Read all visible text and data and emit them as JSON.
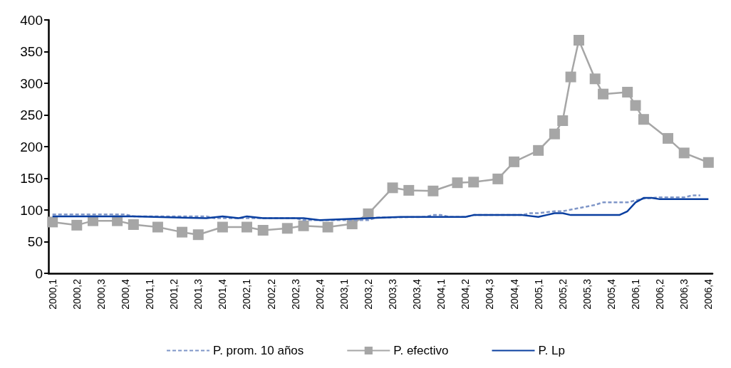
{
  "chart_data": {
    "type": "line",
    "categories": [
      "2000,1",
      null,
      null,
      "2000,2",
      null,
      null,
      "2000,3",
      null,
      null,
      "2000,4",
      null,
      null,
      "2001,1",
      null,
      null,
      "2001,2",
      null,
      null,
      "2001,3",
      null,
      null,
      "2001,4",
      null,
      null,
      "2002,1",
      null,
      null,
      "2002,2",
      null,
      null,
      "2002,3",
      null,
      null,
      "2002,4",
      null,
      null,
      "2003,1",
      null,
      null,
      "2003,2",
      null,
      null,
      "2003,3",
      null,
      null,
      "2003,4",
      null,
      null,
      "2004,1",
      null,
      null,
      "2004,2",
      null,
      null,
      "2004,3",
      null,
      null,
      "2004,4",
      null,
      null,
      "2005,1",
      null,
      null,
      "2005,2",
      null,
      null,
      "2005,3",
      null,
      null,
      "2005,4",
      null,
      null,
      "2006,1",
      null,
      null,
      "2006,2",
      null,
      null,
      "2006,3",
      null,
      null,
      "2006,4"
    ],
    "ylim": [
      0,
      400
    ],
    "yticks": [
      0,
      50,
      100,
      150,
      200,
      250,
      300,
      350,
      400
    ],
    "grid": false,
    "legend": "bottom",
    "series": [
      {
        "name": "P. prom. 10 años",
        "color": "#7f96c8",
        "line_style": "dashed",
        "marker": "none",
        "values": [
          93,
          null,
          null,
          null,
          null,
          null,
          null,
          null,
          null,
          93,
          90,
          null,
          null,
          null,
          null,
          null,
          null,
          null,
          null,
          90,
          87,
          null,
          null,
          null,
          null,
          null,
          null,
          null,
          null,
          null,
          87,
          84,
          null,
          null,
          null,
          null,
          null,
          null,
          null,
          84,
          88,
          null,
          null,
          null,
          null,
          null,
          89,
          92,
          92,
          89,
          null,
          89,
          92,
          null,
          null,
          null,
          null,
          null,
          92,
          95,
          95,
          null,
          98,
          98,
          null,
          103,
          null,
          108,
          112,
          null,
          null,
          112,
          null,
          118,
          null,
          120,
          null,
          null,
          120,
          123,
          123,
          null
        ]
      },
      {
        "name": "P. efectivo",
        "color": "#a6a6a6",
        "line_style": "solid",
        "marker": "square",
        "values": [
          81,
          null,
          null,
          76,
          null,
          83,
          null,
          null,
          83,
          null,
          77,
          null,
          null,
          73,
          null,
          null,
          65,
          null,
          61,
          null,
          null,
          73,
          null,
          null,
          73,
          null,
          68,
          null,
          null,
          71,
          null,
          75,
          null,
          null,
          73,
          null,
          null,
          78,
          null,
          94,
          null,
          null,
          135,
          null,
          131,
          null,
          null,
          130,
          null,
          null,
          143,
          null,
          144,
          null,
          null,
          149,
          null,
          176,
          null,
          null,
          194,
          null,
          220,
          241,
          310,
          368,
          null,
          307,
          283,
          null,
          null,
          286,
          265,
          243,
          null,
          null,
          213,
          null,
          190,
          null,
          null,
          175
        ]
      },
      {
        "name": "P. Lp",
        "color": "#0a3fa0",
        "line_style": "solid",
        "marker": "none",
        "values": [
          90,
          null,
          null,
          null,
          null,
          null,
          null,
          null,
          null,
          null,
          90,
          null,
          null,
          null,
          null,
          null,
          null,
          null,
          null,
          87,
          null,
          90,
          null,
          87,
          90,
          null,
          87,
          null,
          null,
          null,
          null,
          87,
          null,
          84,
          null,
          null,
          null,
          null,
          null,
          87,
          null,
          null,
          null,
          89,
          null,
          null,
          null,
          null,
          null,
          null,
          null,
          89,
          92,
          null,
          null,
          null,
          null,
          null,
          92,
          null,
          89,
          92,
          95,
          95,
          92,
          null,
          null,
          null,
          null,
          null,
          92,
          98,
          112,
          119,
          119,
          117,
          null,
          null,
          null,
          null,
          null,
          117
        ]
      }
    ]
  }
}
